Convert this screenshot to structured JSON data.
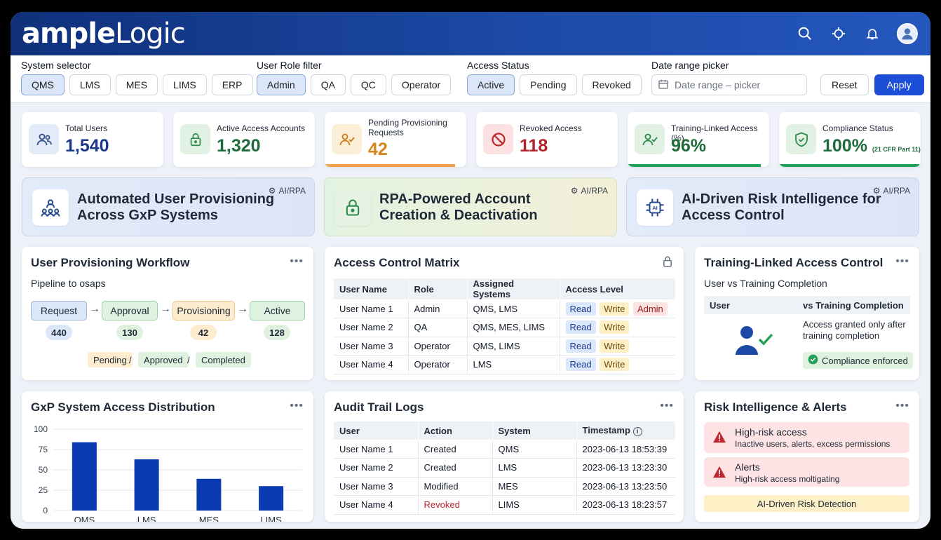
{
  "brand": {
    "logo_bold": "ample",
    "logo_light": "Logic"
  },
  "header_icons": [
    "search-icon",
    "settings-icon",
    "bell-icon",
    "user-avatar-icon"
  ],
  "filters": {
    "system_label": "System selector",
    "systems": [
      "QMS",
      "LMS",
      "MES",
      "LIMS",
      "ERP"
    ],
    "system_selected": "QMS",
    "role_label": "User Role filter",
    "roles": [
      "Admin",
      "QA",
      "QC",
      "Operator"
    ],
    "role_selected": "Admin",
    "status_label": "Access Status",
    "statuses": [
      "Active",
      "Pending",
      "Revoked"
    ],
    "status_selected": "Active",
    "date_label": "Date range picker",
    "date_placeholder": "Date range – picker",
    "reset": "Reset",
    "apply": "Apply"
  },
  "stats": [
    {
      "label": "Total Users",
      "value": "1,540",
      "icon": "users-icon"
    },
    {
      "label": "Active Access Accounts",
      "value": "1,320",
      "icon": "lock-icon"
    },
    {
      "label": "Pending Provisioning Requests",
      "value": "42",
      "icon": "user-check-icon"
    },
    {
      "label": "Revoked Access",
      "value": "118",
      "icon": "ban-icon"
    },
    {
      "label": "Training-Linked Access (%)",
      "value": "96%",
      "icon": "users-check-icon"
    },
    {
      "label": "Compliance Status",
      "value": "100%",
      "note": "(21 CFR Part 11)",
      "icon": "shield-check-icon"
    }
  ],
  "features": [
    {
      "title": "Automated User Provisioning Across GxP Systems",
      "tag": "AI/RPA"
    },
    {
      "title": "RPA-Powered Account Creation & Deactivation",
      "tag": "AI/RPA"
    },
    {
      "title": "AI-Driven Risk Intelligence for Access Control",
      "tag": "AI/RPA"
    }
  ],
  "workflow": {
    "title": "User Provisioning Workflow",
    "subtitle": "Pipeline to osaps",
    "steps": [
      {
        "label": "Request",
        "count": "440"
      },
      {
        "label": "Approval",
        "count": "130"
      },
      {
        "label": "Provisioning",
        "count": "42"
      },
      {
        "label": "Active",
        "count": "128"
      }
    ],
    "legend": [
      "Pending",
      "Approved",
      "Completed"
    ],
    "separator": "/"
  },
  "matrix": {
    "title": "Access Control Matrix",
    "headers": [
      "User Name",
      "Role",
      "Assigned Systems",
      "Access Level"
    ],
    "rows": [
      {
        "user": "User Name 1",
        "role": "Admin",
        "systems": "QMS, LMS",
        "levels": [
          "Read",
          "Write",
          "Admin"
        ]
      },
      {
        "user": "User Name 2",
        "role": "QA",
        "systems": "QMS, MES, LIMS",
        "levels": [
          "Read",
          "Write"
        ]
      },
      {
        "user": "User Name 3",
        "role": "Operator",
        "systems": "QMS, LIMS",
        "levels": [
          "Read",
          "Write"
        ]
      },
      {
        "user": "User Name 4",
        "role": "Operator",
        "systems": "LMS",
        "levels": [
          "Read",
          "Write"
        ]
      }
    ]
  },
  "training": {
    "title": "Training-Linked Access Control",
    "subtitle": "User vs Training Completion",
    "col1": "User",
    "col2": "vs Training Completion",
    "note": "Access granted only after training completion",
    "badge": "Compliance enforced"
  },
  "distribution": {
    "title": "GxP System Access Distribution"
  },
  "chart_data": {
    "type": "bar",
    "categories": [
      "QMS",
      "LMS",
      "MES",
      "LIMS"
    ],
    "values": [
      84,
      63,
      39,
      30
    ],
    "ylim": [
      0,
      100
    ],
    "yticks": [
      0,
      25,
      50,
      75,
      100
    ],
    "grid": true,
    "color": "#0b3bb0"
  },
  "audit": {
    "title": "Audit Trail Logs",
    "headers": [
      "User",
      "Action",
      "System",
      "Timestamp"
    ],
    "rows": [
      {
        "user": "User Name 1",
        "action": "Created",
        "system": "QMS",
        "timestamp": "2023-06-13 18:53:39",
        "revoked": false
      },
      {
        "user": "User Name 2",
        "action": "Created",
        "system": "LMS",
        "timestamp": "2023-06-13 13:23:30",
        "revoked": false
      },
      {
        "user": "User Name 3",
        "action": "Modified",
        "system": "MES",
        "timestamp": "2023-06-13 13:23:50",
        "revoked": false
      },
      {
        "user": "User Name 4",
        "action": "Revoked",
        "system": "LIMS",
        "timestamp": "2023-06-13 18:23:57",
        "revoked": true
      }
    ]
  },
  "risk": {
    "title": "Risk Intelligence & Alerts",
    "alerts": [
      {
        "title": "High-risk access",
        "desc": "Inactive users, alerts, excess permissions"
      },
      {
        "title": "Alerts",
        "desc": "High-risk access moltigating"
      }
    ],
    "footer": "AI-Driven Risk Detection"
  },
  "colors": {
    "brand_blue": "#1d4ed8",
    "header_dark": "#10307a",
    "green": "#22a05a",
    "orange": "#f0a04b",
    "red": "#c0262d"
  }
}
